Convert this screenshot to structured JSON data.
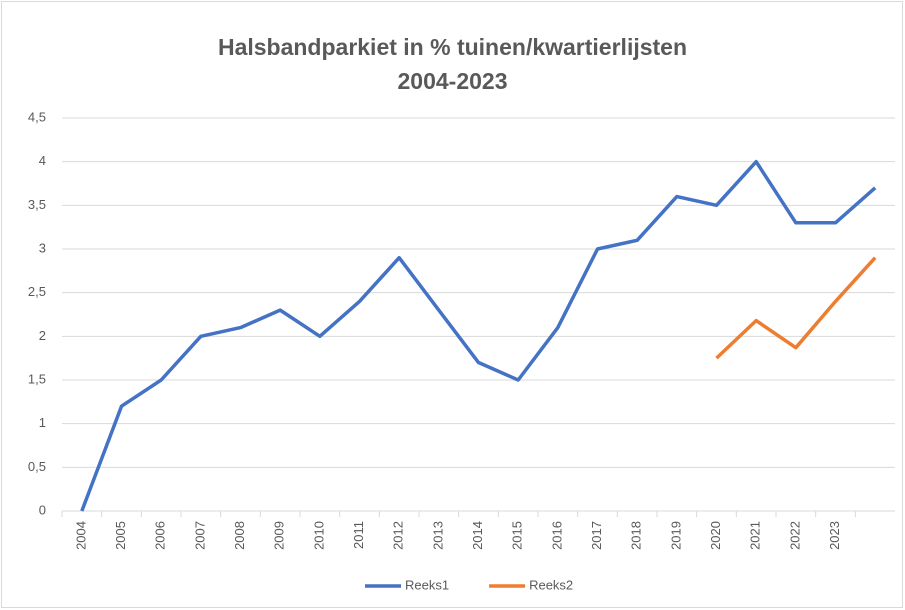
{
  "chart_data": {
    "type": "line",
    "title": "Halsbandparkiet in % tuinen/kwartierlijsten 2004-2023",
    "categories": [
      "2004",
      "2005",
      "2006",
      "2007",
      "2008",
      "2009",
      "2010",
      "2011",
      "2012",
      "2013",
      "2014",
      "2015",
      "2016",
      "2017",
      "2018",
      "2019",
      "2020",
      "2021",
      "2022",
      "2023",
      null
    ],
    "series": [
      {
        "name": "Reeks1",
        "color": "#4472c4",
        "values": [
          0,
          1.2,
          1.5,
          2.0,
          2.1,
          2.3,
          2.0,
          2.4,
          2.9,
          2.3,
          1.7,
          1.5,
          2.1,
          3.0,
          3.1,
          3.6,
          3.5,
          4.0,
          3.3,
          3.3,
          3.7
        ]
      },
      {
        "name": "Reeks2",
        "color": "#ed7d31",
        "values": [
          null,
          null,
          null,
          null,
          null,
          null,
          null,
          null,
          null,
          null,
          null,
          null,
          null,
          null,
          null,
          null,
          1.75,
          2.18,
          1.87,
          2.4,
          2.9
        ]
      }
    ],
    "ylim": [
      0,
      4.5
    ],
    "yticks": [
      0,
      {
        "value": 0.5,
        "label": "0,5"
      },
      1,
      {
        "value": 1.5,
        "label": "1,5"
      },
      2,
      {
        "value": 2.5,
        "label": "2,5"
      },
      3,
      {
        "value": 3.5,
        "label": "3,5"
      },
      4,
      {
        "value": 4.5,
        "label": "4,5"
      }
    ],
    "grid": true,
    "legend": "bottom"
  }
}
